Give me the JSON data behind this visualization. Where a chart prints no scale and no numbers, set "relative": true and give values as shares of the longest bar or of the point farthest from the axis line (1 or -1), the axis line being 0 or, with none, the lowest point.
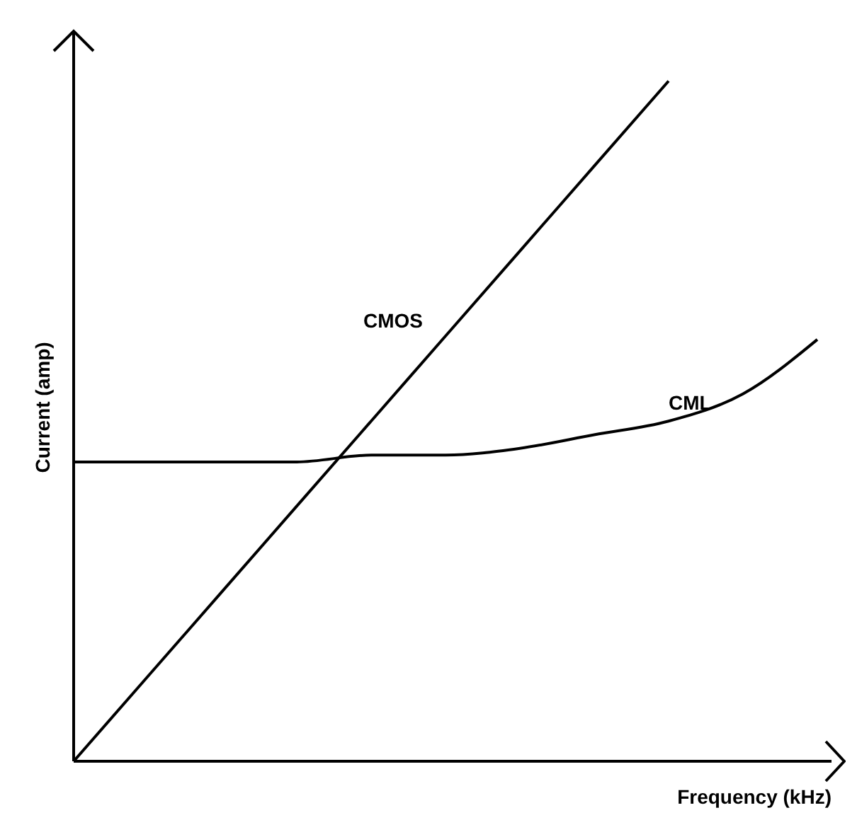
{
  "chart_data": {
    "type": "line",
    "relative": true,
    "xlabel": "Frequency (kHz)",
    "ylabel": "Current (amp)",
    "marker": "none",
    "line_style": "solid",
    "categories": [
      null,
      null,
      null,
      null,
      null,
      null,
      null,
      null,
      null,
      null,
      null
    ],
    "series": [
      {
        "name": "CMOS",
        "color": "#000000",
        "values": [
          0,
          0.125,
          0.25,
          0.375,
          0.5,
          0.625,
          0.75,
          0.875,
          1.0,
          null,
          null
        ]
      },
      {
        "name": "CML",
        "color": "#000000",
        "values": [
          0.44,
          0.44,
          0.44,
          0.44,
          0.45,
          0.45,
          0.46,
          0.48,
          0.5,
          0.54,
          0.62
        ]
      }
    ]
  }
}
